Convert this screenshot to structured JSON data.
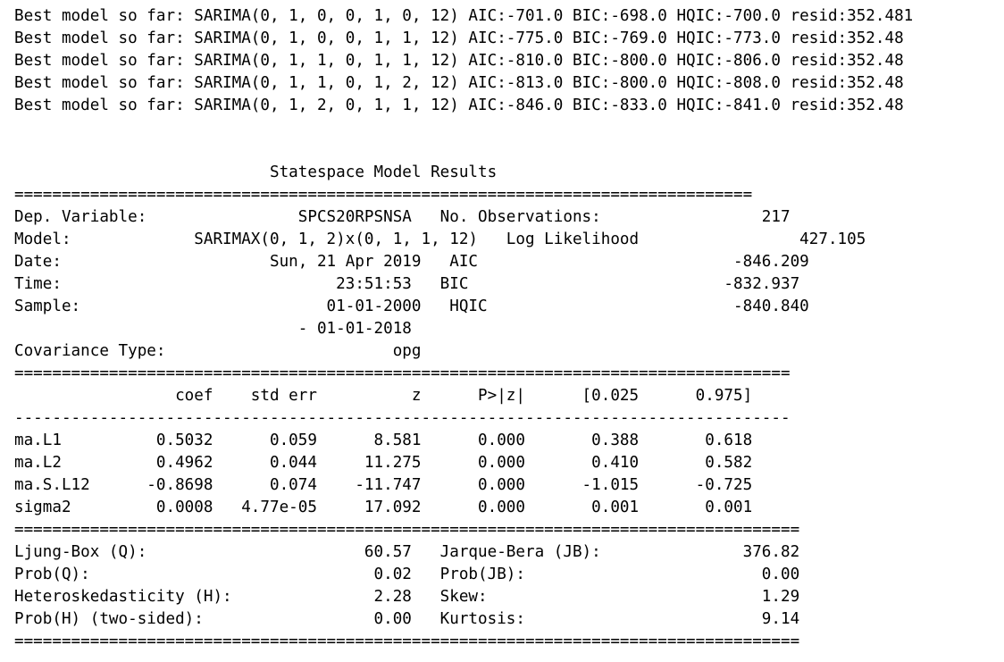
{
  "search_lines": [
    "Best model so far: SARIMA(0, 1, 0, 0, 1, 0, 12) AIC:-701.0 BIC:-698.0 HQIC:-700.0 resid:352.481",
    "Best model so far: SARIMA(0, 1, 0, 0, 1, 1, 12) AIC:-775.0 BIC:-769.0 HQIC:-773.0 resid:352.48",
    "Best model so far: SARIMA(0, 1, 1, 0, 1, 1, 12) AIC:-810.0 BIC:-800.0 HQIC:-806.0 resid:352.48",
    "Best model so far: SARIMA(0, 1, 1, 0, 1, 2, 12) AIC:-813.0 BIC:-800.0 HQIC:-808.0 resid:352.48",
    "Best model so far: SARIMA(0, 1, 2, 0, 1, 1, 12) AIC:-846.0 BIC:-833.0 HQIC:-841.0 resid:352.48"
  ],
  "summary_lines": [
    "                           Statespace Model Results                           ",
    "==============================================================================",
    "Dep. Variable:                SPCS20RPSNSA   No. Observations:                 217",
    "Model:             SARIMAX(0, 1, 2)x(0, 1, 1, 12)   Log Likelihood                 427.105",
    "Date:                      Sun, 21 Apr 2019   AIC                           -846.209",
    "Time:                             23:51:53   BIC                           -832.937",
    "Sample:                          01-01-2000   HQIC                          -840.840",
    "                              - 01-01-2018                                         ",
    "Covariance Type:                        opg                                         ",
    "==================================================================================",
    "                 coef    std err          z      P>|z|      [0.025      0.975]",
    "----------------------------------------------------------------------------------",
    "ma.L1          0.5032      0.059      8.581      0.000       0.388       0.618",
    "ma.L2          0.4962      0.044     11.275      0.000       0.410       0.582",
    "ma.S.L12      -0.8698      0.074    -11.747      0.000      -1.015      -0.725",
    "sigma2         0.0008   4.77e-05     17.092      0.000       0.001       0.001",
    "===================================================================================",
    "Ljung-Box (Q):                       60.57   Jarque-Bera (JB):               376.82",
    "Prob(Q):                              0.02   Prob(JB):                         0.00",
    "Heteroskedasticity (H):               2.28   Skew:                             1.29",
    "Prob(H) (two-sided):                  0.00   Kurtosis:                         9.14",
    "==================================================================================="
  ]
}
